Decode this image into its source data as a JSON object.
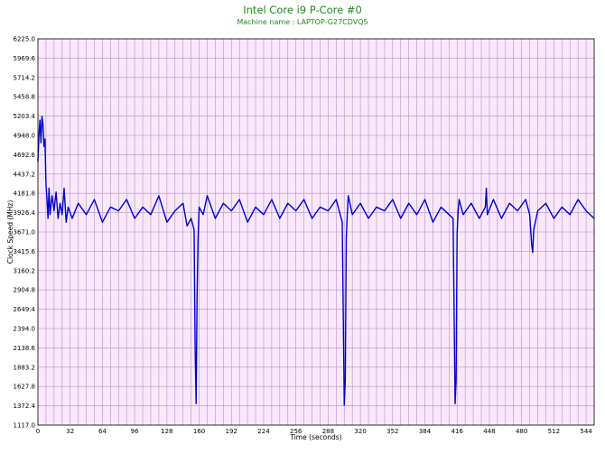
{
  "chart_data": {
    "type": "line",
    "title": "Intel Core i9 P-Core #0",
    "subtitle": "Machine name : LAPTOP-G27CDVQ5",
    "xlabel": "Time (seconds)",
    "ylabel": "Clock Speed (MHz)",
    "xlim": [
      0,
      552
    ],
    "ylim": [
      1117.0,
      6225.0
    ],
    "x_ticks": [
      "0",
      "32",
      "64",
      "96",
      "128",
      "160",
      "192",
      "224",
      "256",
      "288",
      "320",
      "352",
      "384",
      "416",
      "448",
      "480",
      "512",
      "544"
    ],
    "y_ticks": [
      "1117.0",
      "1372.4",
      "1627.8",
      "1883.2",
      "2138.6",
      "2394.0",
      "2649.4",
      "2904.8",
      "3160.2",
      "3415.6",
      "3671.0",
      "3926.4",
      "4181.8",
      "4437.2",
      "4692.6",
      "4948.0",
      "5203.4",
      "5458.8",
      "5714.2",
      "5969.6",
      "6225.0"
    ],
    "grid": true,
    "background": "#f8e8fa",
    "grid_color": "#b98fc4",
    "line_color": "#0000cc",
    "title_color": "#1f8a1f",
    "series": [
      {
        "x": [
          0,
          1,
          2,
          3,
          4,
          5,
          6,
          7,
          8,
          9,
          10,
          11,
          12,
          14,
          16,
          18,
          20,
          22,
          24,
          26,
          28,
          30,
          34,
          40,
          48,
          56,
          64,
          72,
          80,
          88,
          96,
          104,
          112,
          120,
          128,
          136,
          144,
          148,
          152,
          155,
          156,
          157,
          158,
          159,
          160,
          164,
          168,
          176,
          184,
          192,
          200,
          208,
          216,
          224,
          232,
          240,
          248,
          256,
          264,
          272,
          280,
          288,
          296,
          302,
          304,
          305,
          306,
          307,
          308,
          312,
          320,
          328,
          336,
          344,
          352,
          360,
          368,
          376,
          384,
          392,
          400,
          408,
          412,
          414,
          415,
          416,
          417,
          418,
          422,
          430,
          438,
          444,
          445,
          446,
          452,
          460,
          468,
          476,
          484,
          488,
          490,
          491,
          492,
          496,
          504,
          512,
          520,
          528,
          536,
          544,
          552
        ],
        "y": [
          4600,
          4950,
          5150,
          4850,
          5200,
          5100,
          4800,
          4900,
          4300,
          4100,
          3850,
          4250,
          3900,
          4150,
          3950,
          4200,
          3850,
          4050,
          3900,
          4250,
          3800,
          4000,
          3850,
          4050,
          3900,
          4100,
          3800,
          4000,
          3950,
          4100,
          3850,
          4000,
          3900,
          4150,
          3800,
          3950,
          4050,
          3750,
          3850,
          3700,
          2150,
          1400,
          2900,
          3600,
          4000,
          3900,
          4150,
          3850,
          4050,
          3950,
          4100,
          3800,
          4000,
          3900,
          4100,
          3850,
          4050,
          3950,
          4100,
          3850,
          4000,
          3950,
          4100,
          3800,
          1380,
          1700,
          3600,
          3900,
          4150,
          3900,
          4050,
          3850,
          4000,
          3950,
          4100,
          3850,
          4050,
          3900,
          4100,
          3800,
          4000,
          3900,
          3850,
          1400,
          1700,
          3650,
          3950,
          4100,
          3900,
          4050,
          3850,
          4000,
          4250,
          3900,
          4100,
          3850,
          4050,
          3950,
          4100,
          3900,
          3500,
          3400,
          3700,
          3950,
          4050,
          3850,
          4000,
          3900,
          4100,
          3950,
          3850
        ]
      }
    ]
  }
}
